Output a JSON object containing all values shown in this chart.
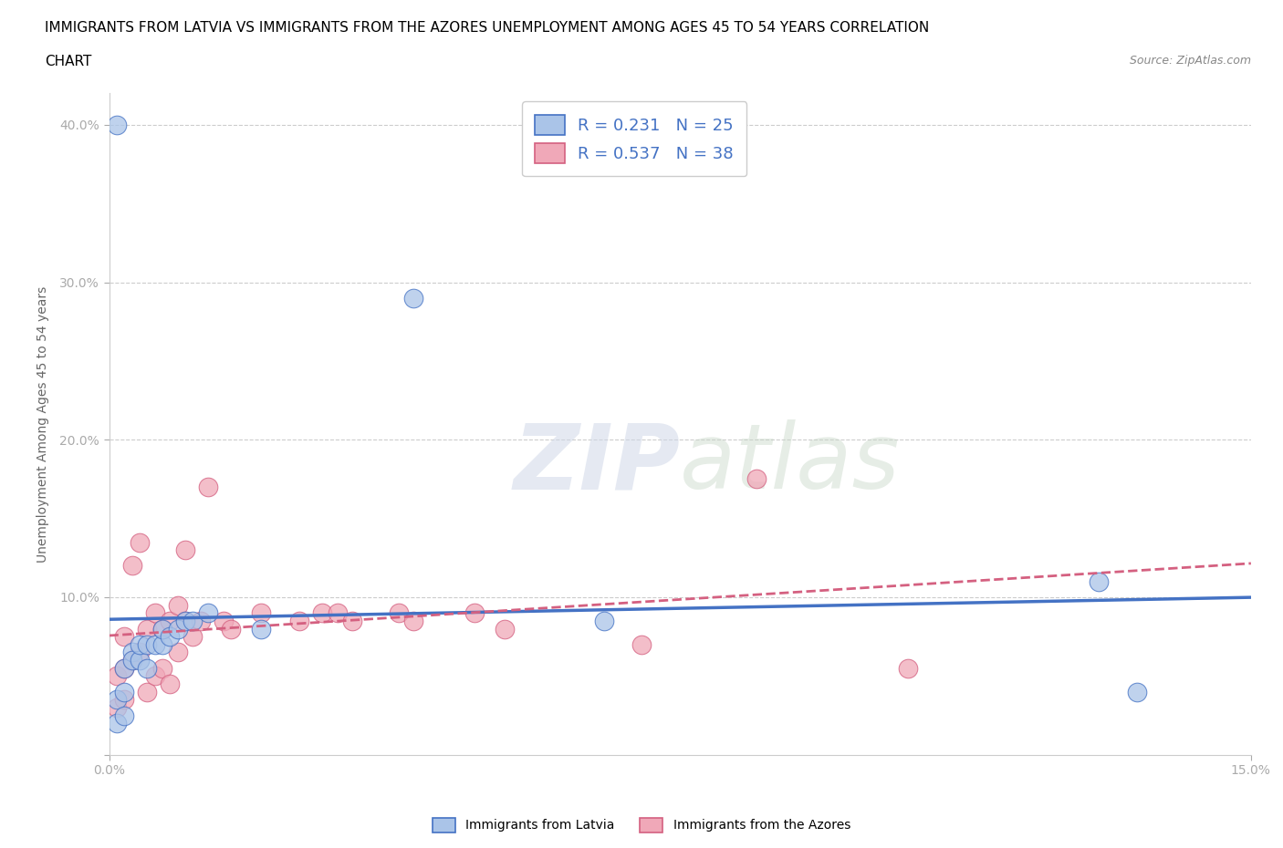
{
  "title_line1": "IMMIGRANTS FROM LATVIA VS IMMIGRANTS FROM THE AZORES UNEMPLOYMENT AMONG AGES 45 TO 54 YEARS CORRELATION",
  "title_line2": "CHART",
  "source_text": "Source: ZipAtlas.com",
  "ylabel": "Unemployment Among Ages 45 to 54 years",
  "xlim": [
    0.0,
    0.15
  ],
  "ylim": [
    0.0,
    0.42
  ],
  "x_ticks": [
    0.0,
    0.15
  ],
  "x_tick_labels": [
    "0.0%",
    "15.0%"
  ],
  "y_ticks": [
    0.0,
    0.1,
    0.2,
    0.3,
    0.4
  ],
  "y_tick_labels": [
    "",
    "10.0%",
    "20.0%",
    "30.0%",
    "40.0%"
  ],
  "grid_color": "#cccccc",
  "background_color": "#ffffff",
  "watermark_text": "ZIPatlas",
  "latvia_color": "#aac4e8",
  "latvia_line_color": "#4472c4",
  "azores_color": "#f0a8b8",
  "azores_line_color": "#d46080",
  "latvia_R": 0.231,
  "latvia_N": 25,
  "azores_R": 0.537,
  "azores_N": 38,
  "legend_color": "#4472c4",
  "latvia_scatter_x": [
    0.001,
    0.001,
    0.001,
    0.002,
    0.002,
    0.002,
    0.003,
    0.003,
    0.004,
    0.004,
    0.005,
    0.005,
    0.006,
    0.007,
    0.007,
    0.008,
    0.009,
    0.01,
    0.011,
    0.013,
    0.02,
    0.04,
    0.065,
    0.13,
    0.135
  ],
  "latvia_scatter_y": [
    0.4,
    0.035,
    0.02,
    0.055,
    0.04,
    0.025,
    0.065,
    0.06,
    0.06,
    0.07,
    0.07,
    0.055,
    0.07,
    0.07,
    0.08,
    0.075,
    0.08,
    0.085,
    0.085,
    0.09,
    0.08,
    0.29,
    0.085,
    0.11,
    0.04
  ],
  "azores_scatter_x": [
    0.001,
    0.001,
    0.002,
    0.002,
    0.002,
    0.003,
    0.003,
    0.004,
    0.004,
    0.005,
    0.005,
    0.006,
    0.006,
    0.007,
    0.007,
    0.008,
    0.008,
    0.009,
    0.009,
    0.01,
    0.01,
    0.011,
    0.012,
    0.013,
    0.015,
    0.016,
    0.02,
    0.025,
    0.028,
    0.03,
    0.032,
    0.038,
    0.04,
    0.048,
    0.052,
    0.07,
    0.085,
    0.105
  ],
  "azores_scatter_y": [
    0.05,
    0.03,
    0.055,
    0.035,
    0.075,
    0.06,
    0.12,
    0.065,
    0.135,
    0.04,
    0.08,
    0.05,
    0.09,
    0.055,
    0.08,
    0.045,
    0.085,
    0.065,
    0.095,
    0.085,
    0.13,
    0.075,
    0.085,
    0.17,
    0.085,
    0.08,
    0.09,
    0.085,
    0.09,
    0.09,
    0.085,
    0.09,
    0.085,
    0.09,
    0.08,
    0.07,
    0.175,
    0.055
  ]
}
